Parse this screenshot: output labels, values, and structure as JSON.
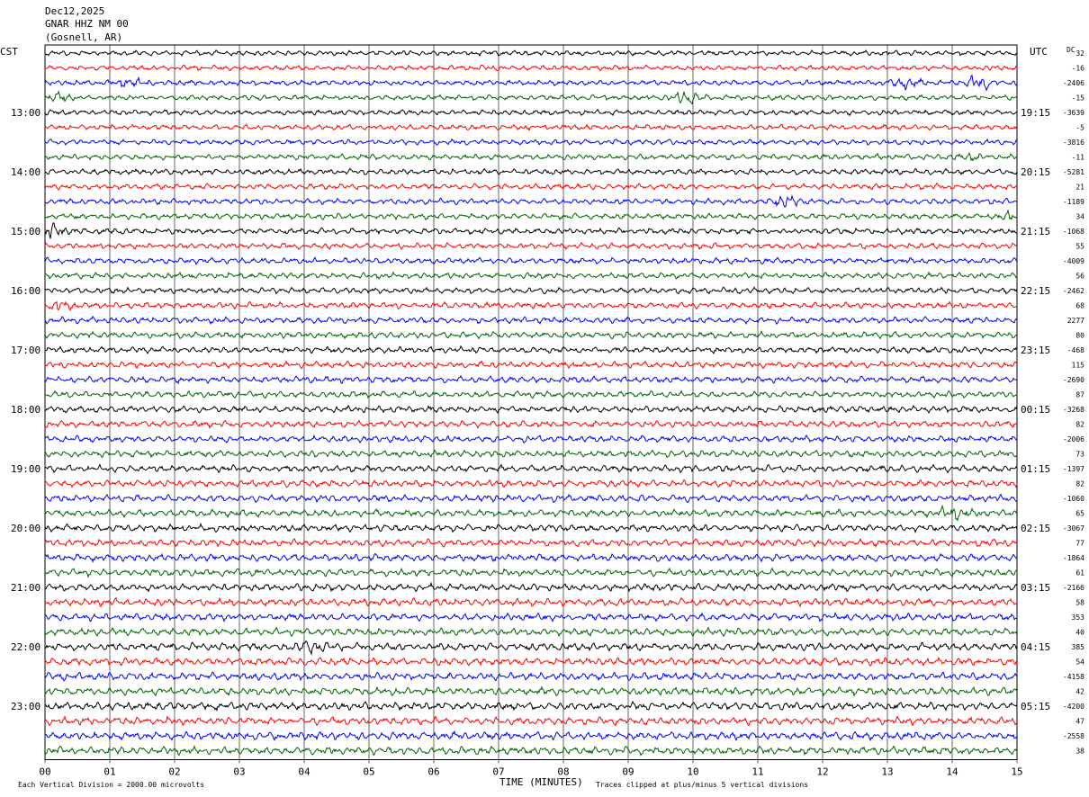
{
  "header": {
    "date": "Dec12,2025",
    "station": "GNAR HHZ NM 00",
    "location": "(Gosnell, AR)"
  },
  "left_timezone": "CST",
  "right_timezone": "UTC",
  "dc_header": "DC",
  "footer": {
    "scale_note": "Each Vertical Division = 2000.00 microvolts",
    "xlabel": "TIME (MINUTES)",
    "clip_note": "Traces clipped at plus/minus 5 vertical divisions"
  },
  "colors": {
    "trace_cycle": [
      "#000000",
      "#ff0000",
      "#0000ff",
      "#006400"
    ],
    "grid": "#000000",
    "background": "#ffffff"
  },
  "chart_data": {
    "type": "line",
    "subtype": "helicorder",
    "xlabel": "TIME (MINUTES)",
    "x_range": [
      0,
      15
    ],
    "x_ticks": [
      "00",
      "01",
      "02",
      "03",
      "04",
      "05",
      "06",
      "07",
      "08",
      "09",
      "10",
      "11",
      "12",
      "13",
      "14",
      "15"
    ],
    "num_traces": 48,
    "minutes_per_trace": 15,
    "left_hour_labels": [
      "13:00",
      "14:00",
      "15:00",
      "16:00",
      "17:00",
      "18:00",
      "19:00",
      "20:00",
      "21:00",
      "22:00",
      "23:00"
    ],
    "right_hour_labels": [
      "19:15",
      "20:15",
      "21:15",
      "22:15",
      "23:15",
      "00:15",
      "01:15",
      "02:15",
      "03:15",
      "04:15",
      "05:15"
    ],
    "dc_offsets": [
      "32",
      "-16",
      "-2406",
      "-15",
      "-3639",
      "-5",
      "-3816",
      "-11",
      "-5281",
      "21",
      "-1189",
      "34",
      "-1068",
      "55",
      "-4009",
      "56",
      "-2462",
      "68",
      "2277",
      "80",
      "-468",
      "115",
      "-2690",
      "87",
      "-3268",
      "82",
      "-2006",
      "73",
      "-1397",
      "82",
      "-1060",
      "65",
      "-3067",
      "77",
      "-1864",
      "61",
      "-2166",
      "58",
      "353",
      "40",
      "385",
      "54",
      "-4158",
      "42",
      "-4200",
      "47",
      "-2558",
      "38"
    ],
    "events": [
      {
        "trace": 2,
        "minute": 13.3,
        "amp": 2.0
      },
      {
        "trace": 2,
        "minute": 14.4,
        "amp": 2.6
      },
      {
        "trace": 2,
        "minute": 1.3,
        "amp": 1.4
      },
      {
        "trace": 3,
        "minute": 0.2,
        "amp": 1.6
      },
      {
        "trace": 3,
        "minute": 9.9,
        "amp": 2.2
      },
      {
        "trace": 7,
        "minute": 14.2,
        "amp": 1.5
      },
      {
        "trace": 10,
        "minute": 11.4,
        "amp": 2.4
      },
      {
        "trace": 11,
        "minute": 15.0,
        "amp": 1.6
      },
      {
        "trace": 12,
        "minute": 0.1,
        "amp": 2.4
      },
      {
        "trace": 17,
        "minute": 0.2,
        "amp": 1.5
      },
      {
        "trace": 31,
        "minute": 14.0,
        "amp": 1.4
      },
      {
        "trace": 40,
        "minute": 4.1,
        "amp": 1.3
      }
    ]
  }
}
